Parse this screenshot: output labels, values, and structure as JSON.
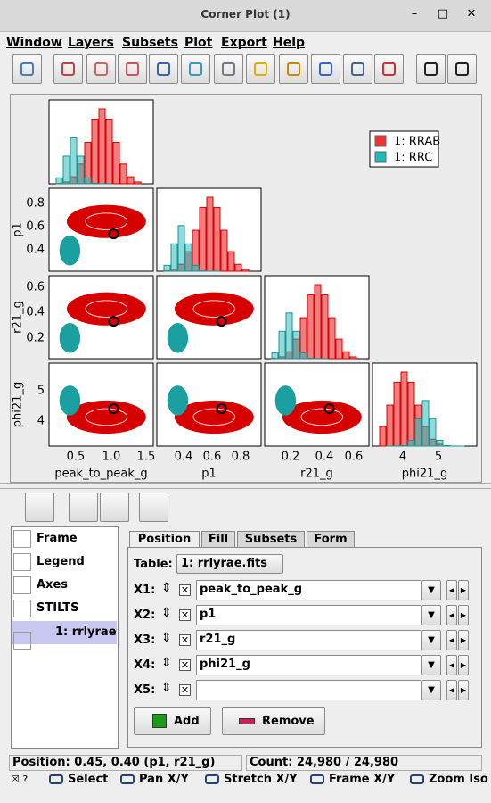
{
  "window": {
    "title": "Corner Plot (1)"
  },
  "menu": [
    "Window",
    "Layers",
    "Subsets",
    "Plot",
    "Export",
    "Help"
  ],
  "plot": {
    "legend": [
      "1: RRAB",
      "1: RRC"
    ],
    "x_axes": [
      {
        "label": "peak_to_peak_g",
        "ticks": [
          "0.5",
          "1.0",
          "1.5"
        ]
      },
      {
        "label": "p1",
        "ticks": [
          "0.4",
          "0.6",
          "0.8"
        ]
      },
      {
        "label": "r21_g",
        "ticks": [
          "0.2",
          "0.4",
          "0.6"
        ]
      },
      {
        "label": "phi21_g",
        "ticks": [
          "4",
          "5"
        ]
      }
    ],
    "y_axes": [
      {
        "label": "p1",
        "ticks": [
          "0.8",
          "0.6",
          "0.4"
        ]
      },
      {
        "label": "r21_g",
        "ticks": [
          "0.6",
          "0.4",
          "0.2"
        ]
      },
      {
        "label": "phi21_g",
        "ticks": [
          "5",
          "4"
        ]
      }
    ]
  },
  "layers": [
    "Frame",
    "Legend",
    "Axes",
    "STILTS",
    "1: rrlyrae"
  ],
  "tabs": [
    "Position",
    "Fill",
    "Subsets",
    "Form"
  ],
  "form": {
    "table_label": "Table:",
    "table_value": "1: rrlyrae.fits",
    "rows": [
      {
        "label": "X1:",
        "value": "peak_to_peak_g"
      },
      {
        "label": "X2:",
        "value": "p1"
      },
      {
        "label": "X3:",
        "value": "r21_g"
      },
      {
        "label": "X4:",
        "value": "phi21_g"
      },
      {
        "label": "X5:"
      }
    ]
  },
  "buttons": [
    "Add",
    "Remove"
  ],
  "status": {
    "position": "Position: 0.45, 0.40 (p1, r21_g)",
    "count": "Count: 24,980 / 24,980"
  },
  "tools": [
    "Select",
    "Pan X/Y",
    "Stretch X/Y",
    "Frame X/Y",
    "Zoom Iso"
  ]
}
